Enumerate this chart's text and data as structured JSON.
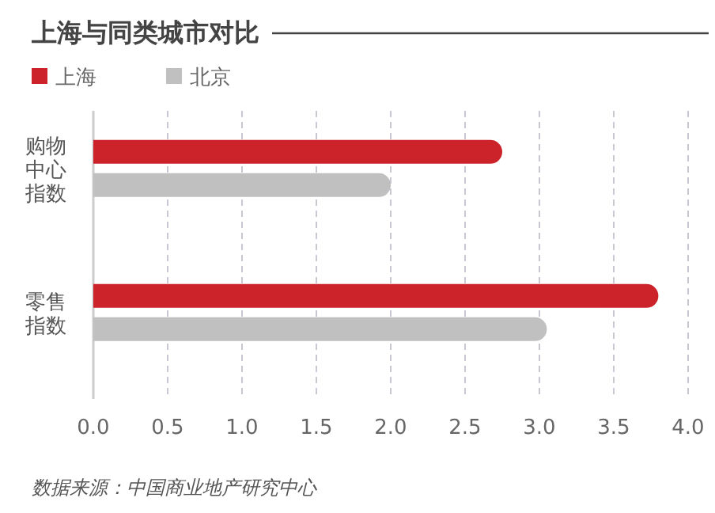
{
  "chart_data": {
    "type": "bar",
    "orientation": "horizontal",
    "title": "上海与同类城市对比",
    "categories": [
      "购物中心指数",
      "零售指数"
    ],
    "series": [
      {
        "name": "上海",
        "color": "#cc2229",
        "values": [
          2.75,
          3.8
        ]
      },
      {
        "name": "北京",
        "color": "#c0c0c0",
        "values": [
          2.0,
          3.05
        ]
      }
    ],
    "xlim": [
      0,
      4
    ],
    "xticks": [
      {
        "value": 0,
        "label": "0.0"
      },
      {
        "value": 0.5,
        "label": "0.5"
      },
      {
        "value": 1,
        "label": "1.0"
      },
      {
        "value": 1.5,
        "label": "1.5"
      },
      {
        "value": 2,
        "label": "2.0"
      },
      {
        "value": 2.5,
        "label": "2.5"
      },
      {
        "value": 3,
        "label": "3.0"
      },
      {
        "value": 3.5,
        "label": "3.5"
      },
      {
        "value": 4,
        "label": "4.0"
      }
    ],
    "grid": "x",
    "legend": "top left",
    "annotations": [
      "数据来源：中国商业地产研究中心"
    ]
  }
}
